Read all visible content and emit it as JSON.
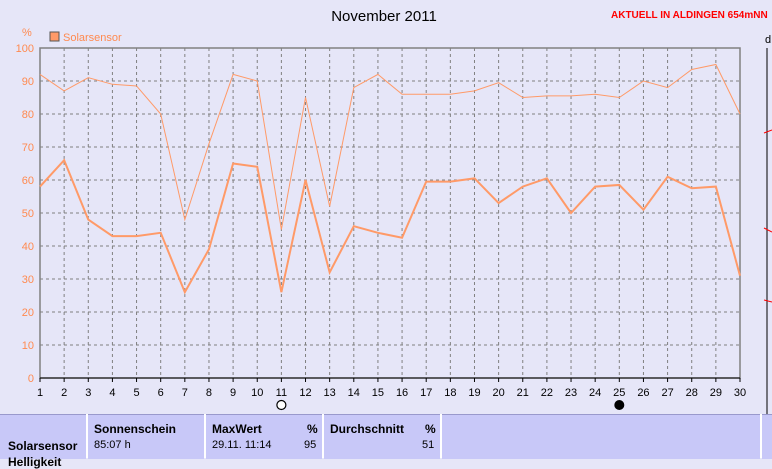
{
  "header": {
    "title": "November 2011",
    "station": "AKTUELL IN ALDINGEN 654mNN",
    "edge_label": "d"
  },
  "colors": {
    "plot_bg": "#e6e6f8",
    "grid": "#808080",
    "series": "#ff9a68",
    "axis_text": "#ff8a50",
    "station_text": "#ff0000"
  },
  "chart_data": {
    "type": "line",
    "ylabel": "%",
    "ylim": [
      0,
      100
    ],
    "yticks": [
      0,
      10,
      20,
      30,
      40,
      50,
      60,
      70,
      80,
      90,
      100
    ],
    "x": [
      1,
      2,
      3,
      4,
      5,
      6,
      7,
      8,
      9,
      10,
      11,
      12,
      13,
      14,
      15,
      16,
      17,
      18,
      19,
      20,
      21,
      22,
      23,
      24,
      25,
      26,
      27,
      28,
      29,
      30
    ],
    "grid": true,
    "legend_position": "top-left",
    "series": [
      {
        "name": "Solarsensor",
        "role": "average",
        "values": [
          58,
          66,
          48,
          43,
          43,
          44,
          26,
          39,
          65,
          64,
          26,
          60,
          32,
          46,
          44,
          42.5,
          59.5,
          59.5,
          60.5,
          53,
          58,
          60.5,
          50,
          58,
          58.5,
          51,
          61,
          57.5,
          58,
          31
        ]
      },
      {
        "name": "",
        "role": "max",
        "values": [
          92,
          87,
          91,
          89,
          88.5,
          80,
          48,
          71,
          92,
          90,
          45,
          85,
          52,
          88,
          92,
          86,
          86,
          86,
          87,
          89.5,
          85,
          85.5,
          85.5,
          86,
          85,
          90,
          88,
          93.5,
          95,
          80
        ]
      }
    ],
    "moon_markers": [
      {
        "day": 11,
        "phase": "full-moon"
      },
      {
        "day": 25,
        "phase": "new-moon"
      }
    ]
  },
  "summary": {
    "row_label": "Solarsensor",
    "row_label2": "Helligkeit",
    "sunshine": {
      "label": "Sonnenschein",
      "value": "85:07 h"
    },
    "max": {
      "label": "MaxWert",
      "unit": "%",
      "when": "29.11.  11:14",
      "value": "95"
    },
    "avg": {
      "label": "Durchschnitt",
      "unit": "%",
      "value": "51"
    }
  }
}
